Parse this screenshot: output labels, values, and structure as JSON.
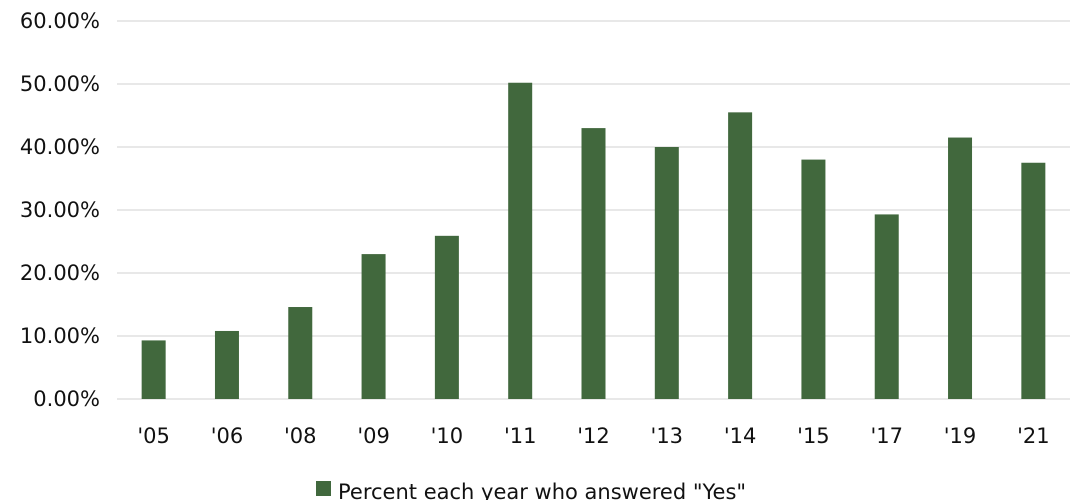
{
  "chart_data": {
    "type": "bar",
    "categories": [
      "'05",
      "'06",
      "'08",
      "'09",
      "'10",
      "'11",
      "'12",
      "'13",
      "'14",
      "'15",
      "'17",
      "'19",
      "'21"
    ],
    "series": [
      {
        "name": "Percent each year who answered \"Yes\"",
        "values": [
          9.3,
          10.8,
          14.6,
          23.0,
          25.9,
          50.2,
          43.0,
          40.0,
          45.5,
          38.0,
          29.3,
          41.5,
          37.5
        ]
      }
    ],
    "ylim": [
      0,
      60
    ],
    "yticks": [
      0,
      10,
      20,
      30,
      40,
      50,
      60
    ],
    "ytick_labels": [
      "0.00%",
      "10.00%",
      "20.00%",
      "30.00%",
      "40.00%",
      "50.00%",
      "60.00%"
    ],
    "grid": true,
    "legend": "bottom",
    "colors": {
      "bar": "#41683d",
      "grid": "#d9d9d9",
      "text": "#111111"
    }
  }
}
